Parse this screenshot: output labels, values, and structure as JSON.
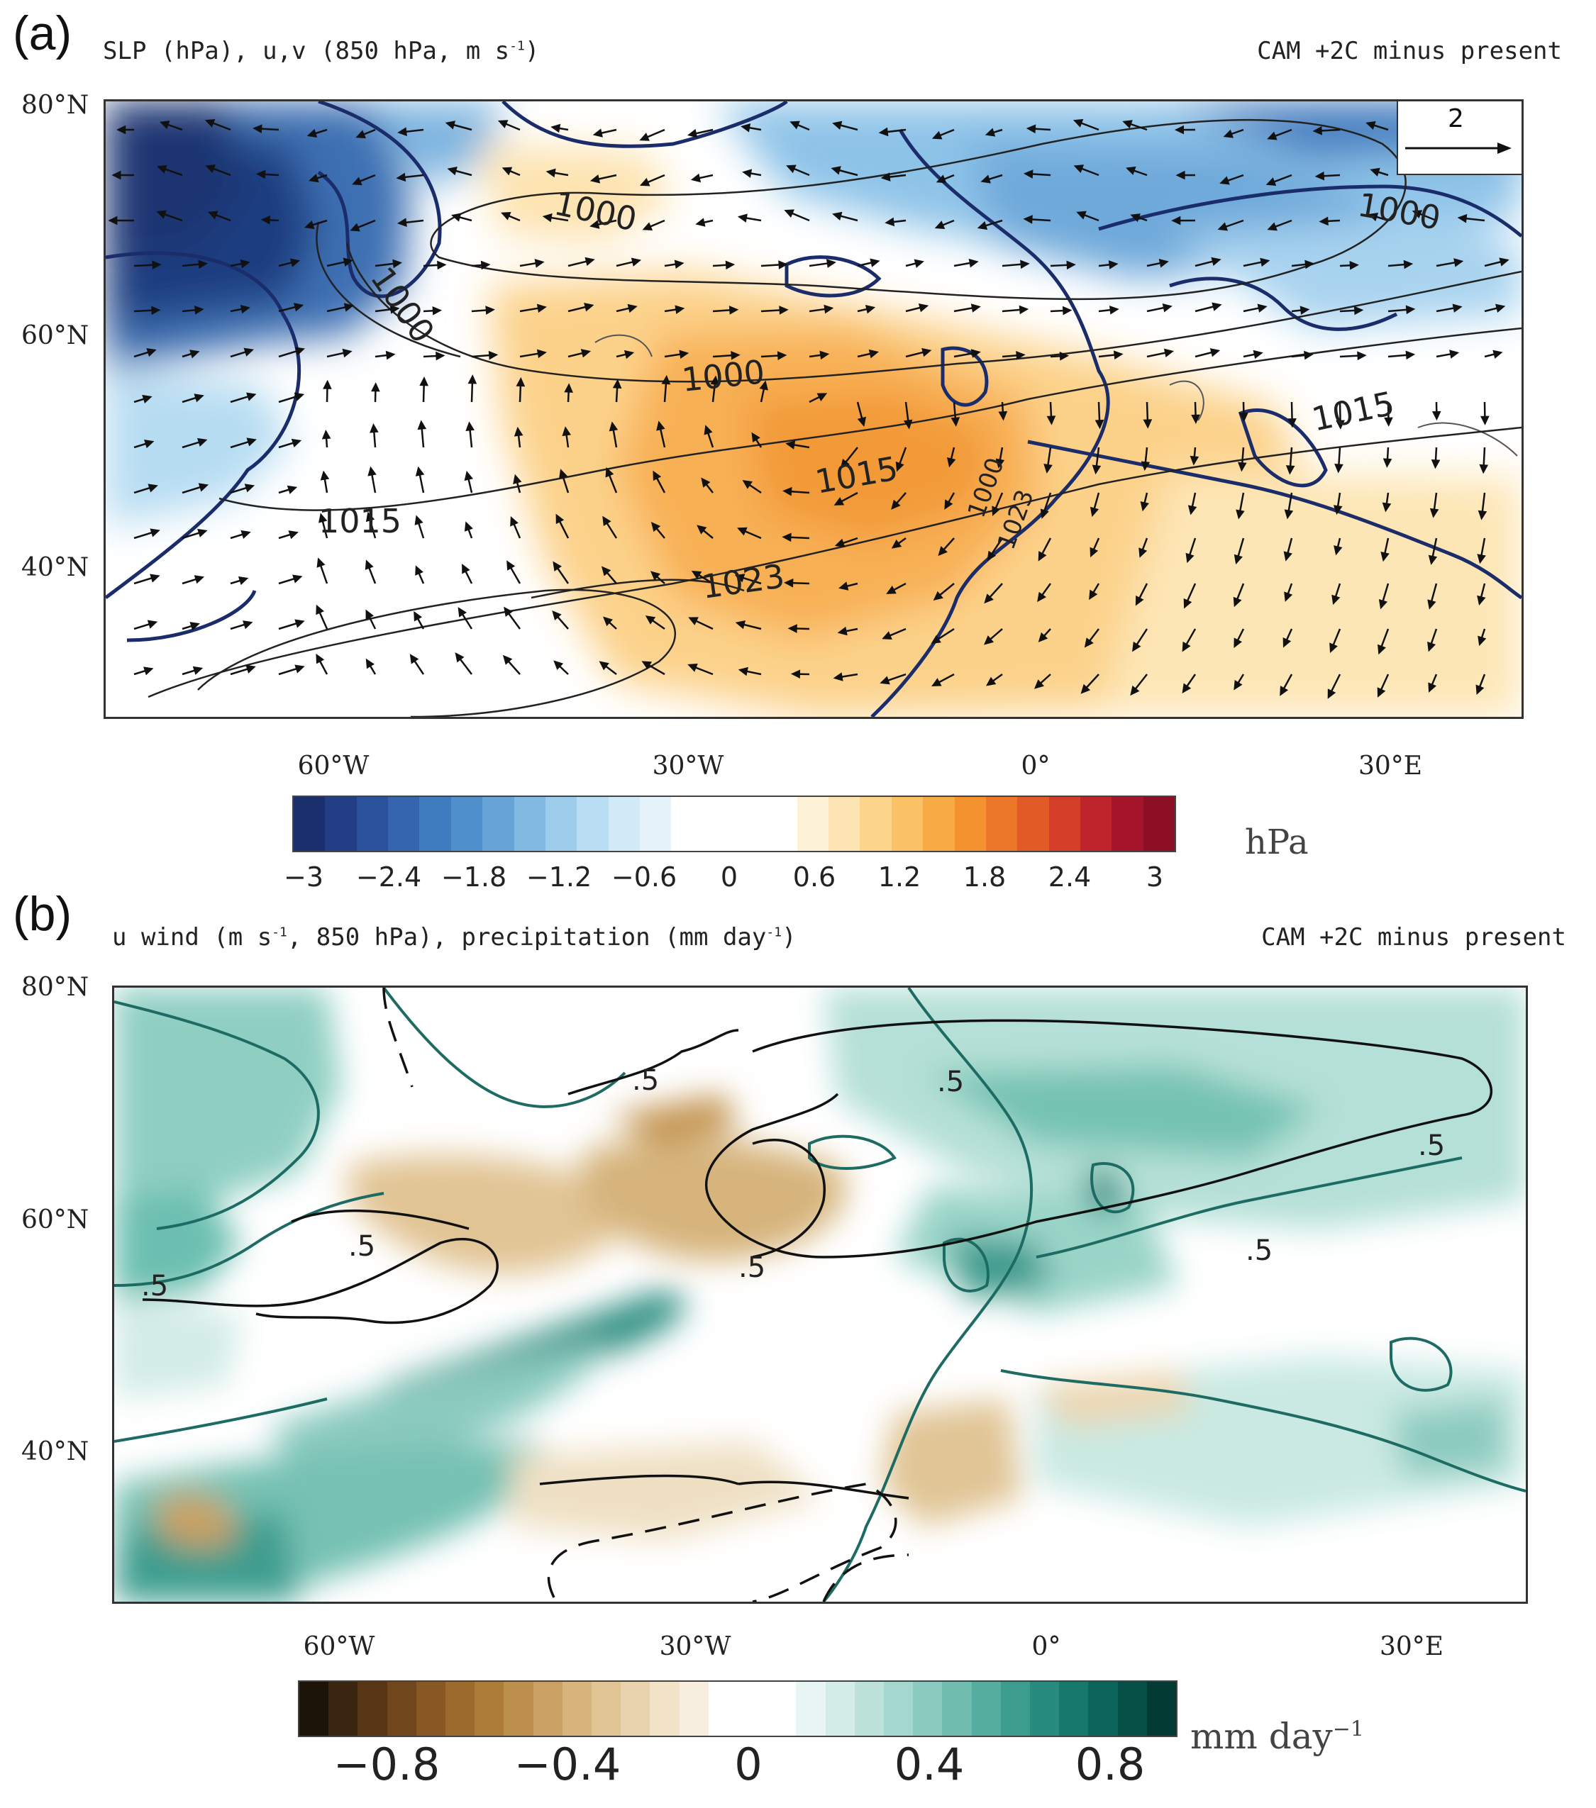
{
  "panel_a": {
    "letter": "(a)",
    "title": "SLP (hPa), u,v (850 hPa, m s",
    "title_sup": "-1",
    "title_end": ")",
    "right_title": "CAM +2C minus present",
    "lat_labels": [
      "80°N",
      "60°N",
      "40°N"
    ],
    "lon_labels": [
      "60°W",
      "30°W",
      "0°",
      "30°E"
    ],
    "reference_vector": "2",
    "contour_labels": [
      "1000",
      "1000",
      "1000",
      "1000",
      "1015",
      "1015",
      "1015",
      "1023",
      "1023",
      "1000"
    ],
    "colorbar": {
      "ticks": [
        "−3",
        "−2.4",
        "−1.8",
        "−1.2",
        "−0.6",
        "0",
        "0.6",
        "1.2",
        "1.8",
        "2.4",
        "3"
      ],
      "unit": "hPa",
      "colors": [
        "#1b2f6e",
        "#223f85",
        "#2a519c",
        "#3465ae",
        "#3f7bbf",
        "#4f90cc",
        "#67a5d8",
        "#82bae3",
        "#9ecdeb",
        "#b9ddf2",
        "#d2eaf7",
        "#e6f3fa",
        "#ffffff",
        "#ffffff",
        "#ffffff",
        "#ffffff",
        "#fdf1d8",
        "#fde4b3",
        "#fcd48a",
        "#fbc165",
        "#f8aa45",
        "#f3922f",
        "#ec7728",
        "#e25a26",
        "#d43d28",
        "#c0242b",
        "#a4142a",
        "#8c0f25"
      ]
    }
  },
  "panel_b": {
    "letter": "(b)",
    "title": "u wind (m s",
    "title_sup": "-1",
    "title_mid": ", 850 hPa), precipitation (mm day",
    "title_sup2": "-1",
    "title_end": ")",
    "right_title": "CAM +2C minus present",
    "lat_labels": [
      "80°N",
      "60°N",
      "40°N"
    ],
    "lon_labels": [
      "60°W",
      "30°W",
      "0°",
      "30°E"
    ],
    "contour_labels": [
      ".5",
      ".5",
      ".5",
      ".5",
      ".5",
      ".5",
      ".5"
    ],
    "colorbar": {
      "ticks": [
        "−0.8",
        "−0.4",
        "0",
        "0.4",
        "0.8"
      ],
      "unit": "mm day",
      "unit_sup": "−1",
      "colors": [
        "#1c1408",
        "#3a2510",
        "#573615",
        "#70461c",
        "#885823",
        "#9c6a2c",
        "#ad7c39",
        "#bd8f4c",
        "#caa162",
        "#d6b47b",
        "#e0c494",
        "#e9d3ae",
        "#f1e2c8",
        "#f7eedf",
        "#ffffff",
        "#ffffff",
        "#ffffff",
        "#e9f5f2",
        "#d3ece6",
        "#bde2da",
        "#a4d7cd",
        "#8bcabf",
        "#70bdb0",
        "#55ada0",
        "#3c9d8f",
        "#278b7f",
        "#17786c",
        "#0c655b",
        "#064f47",
        "#033a34"
      ]
    }
  }
}
